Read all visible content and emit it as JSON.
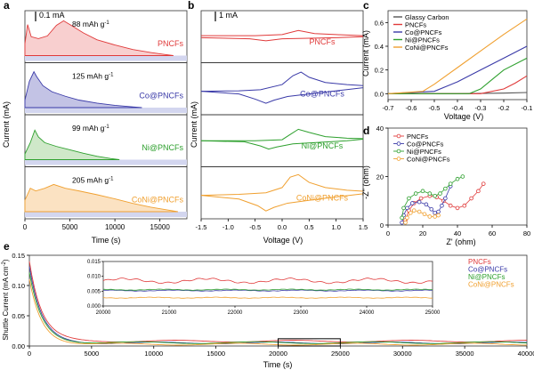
{
  "chart_data": [
    {
      "panel": "a",
      "type": "area",
      "xlabel": "Time (s)",
      "ylabel": "Current (mA)",
      "xticks": [
        0,
        5000,
        10000,
        15000
      ],
      "xlim": [
        0,
        18000
      ],
      "scalebar": "0.1 mA",
      "series": [
        {
          "name": "PNCFs",
          "capacity": "88 mAh g",
          "color": "#e03a3a",
          "fill": "#f8cfcf",
          "points": [
            [
              0,
              0.32
            ],
            [
              300,
              0.82
            ],
            [
              700,
              0.5
            ],
            [
              1500,
              0.45
            ],
            [
              2500,
              0.52
            ],
            [
              3500,
              0.8
            ],
            [
              4300,
              0.92
            ],
            [
              5000,
              0.82
            ],
            [
              6500,
              0.6
            ],
            [
              8000,
              0.42
            ],
            [
              10000,
              0.28
            ],
            [
              12000,
              0.16
            ],
            [
              14000,
              0.08
            ],
            [
              15500,
              0.03
            ],
            [
              16500,
              0
            ]
          ]
        },
        {
          "name": "Co@PNCFs",
          "capacity": "125 mAh g",
          "color": "#3a3aa8",
          "fill": "#c3c3e5",
          "points": [
            [
              0,
              0.2
            ],
            [
              500,
              0.7
            ],
            [
              1000,
              0.95
            ],
            [
              1300,
              0.82
            ],
            [
              2000,
              0.58
            ],
            [
              3000,
              0.42
            ],
            [
              4500,
              0.3
            ],
            [
              6000,
              0.2
            ],
            [
              8000,
              0.12
            ],
            [
              10000,
              0.06
            ],
            [
              12000,
              0.02
            ],
            [
              13000,
              0
            ]
          ]
        },
        {
          "name": "Ni@PNCFs",
          "capacity": "99 mAh g",
          "color": "#2ea02e",
          "fill": "#cfe8c9",
          "points": [
            [
              0,
              0.15
            ],
            [
              600,
              0.45
            ],
            [
              1100,
              0.78
            ],
            [
              1500,
              0.6
            ],
            [
              2200,
              0.45
            ],
            [
              3500,
              0.35
            ],
            [
              5000,
              0.26
            ],
            [
              6500,
              0.17
            ],
            [
              8000,
              0.09
            ],
            [
              9500,
              0.03
            ],
            [
              10500,
              0
            ]
          ]
        },
        {
          "name": "CoNi@PNCFs",
          "capacity": "205 mAh g",
          "color": "#f0a030",
          "fill": "#fbe2c2",
          "points": [
            [
              0,
              0.3
            ],
            [
              600,
              0.62
            ],
            [
              1200,
              0.55
            ],
            [
              2200,
              0.62
            ],
            [
              3200,
              0.72
            ],
            [
              4500,
              0.62
            ],
            [
              6000,
              0.55
            ],
            [
              8000,
              0.45
            ],
            [
              10000,
              0.34
            ],
            [
              12000,
              0.22
            ],
            [
              14000,
              0.12
            ],
            [
              16000,
              0.04
            ],
            [
              17000,
              0
            ]
          ]
        }
      ]
    },
    {
      "panel": "b",
      "type": "line",
      "xlabel": "Voltage (V)",
      "ylabel": "Current (mA)",
      "xticks": [
        -1.5,
        -1.0,
        -0.5,
        0.0,
        0.5,
        1.0,
        1.5
      ],
      "xlim": [
        -1.5,
        1.5
      ],
      "scalebar": "1 mA",
      "series": [
        {
          "name": "PNCFs",
          "color": "#e03a3a",
          "upper": [
            [
              -1.5,
              0.52
            ],
            [
              -0.5,
              0.52
            ],
            [
              0.0,
              0.54
            ],
            [
              0.3,
              0.62
            ],
            [
              0.6,
              0.56
            ],
            [
              1.0,
              0.54
            ],
            [
              1.5,
              0.52
            ]
          ],
          "lower": [
            [
              -1.5,
              0.48
            ],
            [
              -0.6,
              0.46
            ],
            [
              -0.3,
              0.42
            ],
            [
              0.0,
              0.46
            ],
            [
              0.5,
              0.47
            ],
            [
              1.0,
              0.48
            ],
            [
              1.5,
              0.5
            ]
          ]
        },
        {
          "name": "Co@PNCFs",
          "color": "#3a3aa8",
          "upper": [
            [
              -1.5,
              0.45
            ],
            [
              -0.8,
              0.46
            ],
            [
              -0.4,
              0.48
            ],
            [
              0.0,
              0.58
            ],
            [
              0.2,
              0.75
            ],
            [
              0.35,
              0.82
            ],
            [
              0.5,
              0.72
            ],
            [
              0.8,
              0.62
            ],
            [
              1.2,
              0.58
            ],
            [
              1.5,
              0.56
            ]
          ],
          "lower": [
            [
              -1.5,
              0.45
            ],
            [
              -0.8,
              0.4
            ],
            [
              -0.5,
              0.3
            ],
            [
              -0.3,
              0.22
            ],
            [
              -0.15,
              0.28
            ],
            [
              0.1,
              0.35
            ],
            [
              0.5,
              0.4
            ],
            [
              1.0,
              0.46
            ],
            [
              1.5,
              0.52
            ]
          ]
        },
        {
          "name": "Ni@PNCFs",
          "color": "#2ea02e",
          "upper": [
            [
              -1.5,
              0.5
            ],
            [
              -0.5,
              0.5
            ],
            [
              0.0,
              0.52
            ],
            [
              0.15,
              0.62
            ],
            [
              0.3,
              0.72
            ],
            [
              0.5,
              0.66
            ],
            [
              0.8,
              0.58
            ],
            [
              1.2,
              0.55
            ],
            [
              1.5,
              0.54
            ]
          ],
          "lower": [
            [
              -1.5,
              0.5
            ],
            [
              -0.7,
              0.48
            ],
            [
              -0.4,
              0.4
            ],
            [
              -0.25,
              0.34
            ],
            [
              -0.1,
              0.38
            ],
            [
              0.2,
              0.44
            ],
            [
              0.7,
              0.47
            ],
            [
              1.2,
              0.5
            ],
            [
              1.5,
              0.53
            ]
          ]
        },
        {
          "name": "CoNi@PNCFs",
          "color": "#f0a030",
          "upper": [
            [
              -1.5,
              0.45
            ],
            [
              -0.8,
              0.47
            ],
            [
              -0.3,
              0.5
            ],
            [
              0.0,
              0.6
            ],
            [
              0.15,
              0.8
            ],
            [
              0.3,
              0.85
            ],
            [
              0.5,
              0.7
            ],
            [
              0.8,
              0.6
            ],
            [
              1.2,
              0.55
            ],
            [
              1.5,
              0.53
            ]
          ],
          "lower": [
            [
              -1.5,
              0.45
            ],
            [
              -0.8,
              0.38
            ],
            [
              -0.45,
              0.25
            ],
            [
              -0.3,
              0.15
            ],
            [
              -0.15,
              0.22
            ],
            [
              0.1,
              0.3
            ],
            [
              0.6,
              0.37
            ],
            [
              1.0,
              0.42
            ],
            [
              1.5,
              0.48
            ]
          ]
        }
      ]
    },
    {
      "panel": "c",
      "type": "line",
      "xlabel": "Voltage (V)",
      "ylabel": "Current (mA)",
      "xlim": [
        -0.7,
        -0.1
      ],
      "ylim": [
        -0.05,
        0.7
      ],
      "xticks": [
        -0.7,
        -0.6,
        -0.5,
        -0.4,
        -0.3,
        -0.2,
        -0.1
      ],
      "yticks": [
        0.0,
        0.2,
        0.4,
        0.6
      ],
      "legend": "top-left",
      "series": [
        {
          "name": "Glassy Carbon",
          "color": "#555555",
          "points": [
            [
              -0.7,
              0.0
            ],
            [
              -0.4,
              0.0
            ],
            [
              -0.2,
              0.005
            ],
            [
              -0.1,
              0.01
            ]
          ]
        },
        {
          "name": "PNCFs",
          "color": "#e03a3a",
          "points": [
            [
              -0.7,
              0.0
            ],
            [
              -0.3,
              0.0
            ],
            [
              -0.2,
              0.04
            ],
            [
              -0.15,
              0.09
            ],
            [
              -0.1,
              0.15
            ]
          ]
        },
        {
          "name": "Co@PNCFs",
          "color": "#3a3aa8",
          "points": [
            [
              -0.7,
              0.0
            ],
            [
              -0.5,
              0.02
            ],
            [
              -0.4,
              0.1
            ],
            [
              -0.3,
              0.2
            ],
            [
              -0.2,
              0.3
            ],
            [
              -0.1,
              0.4
            ]
          ]
        },
        {
          "name": "Ni@PNCFs",
          "color": "#2ea02e",
          "points": [
            [
              -0.7,
              0.0
            ],
            [
              -0.35,
              0.0
            ],
            [
              -0.3,
              0.04
            ],
            [
              -0.25,
              0.12
            ],
            [
              -0.2,
              0.2
            ],
            [
              -0.1,
              0.3
            ]
          ]
        },
        {
          "name": "CoNi@PNCFs",
          "color": "#f0a030",
          "points": [
            [
              -0.7,
              0.0
            ],
            [
              -0.55,
              0.02
            ],
            [
              -0.5,
              0.08
            ],
            [
              -0.4,
              0.22
            ],
            [
              -0.3,
              0.36
            ],
            [
              -0.2,
              0.5
            ],
            [
              -0.1,
              0.63
            ]
          ]
        }
      ]
    },
    {
      "panel": "d",
      "type": "scatter",
      "xlabel": "Z' (ohm)",
      "ylabel": "-Z\" (ohm)",
      "xlim": [
        0,
        80
      ],
      "ylim": [
        0,
        40
      ],
      "xticks": [
        0,
        20,
        40,
        60,
        80
      ],
      "yticks": [
        0,
        20,
        40
      ],
      "legend": "top-left",
      "series": [
        {
          "name": "PNCFs",
          "color": "#e03a3a",
          "points": [
            [
              10,
              2
            ],
            [
              12,
              6
            ],
            [
              15,
              9
            ],
            [
              19,
              11
            ],
            [
              24,
              12
            ],
            [
              28,
              11.5
            ],
            [
              32,
              10
            ],
            [
              36,
              8
            ],
            [
              40,
              7
            ],
            [
              44,
              8
            ],
            [
              48,
              11
            ],
            [
              52,
              14
            ],
            [
              55,
              17
            ]
          ]
        },
        {
          "name": "Co@PNCFs",
          "color": "#3a3aa8",
          "points": [
            [
              8,
              1
            ],
            [
              9,
              4
            ],
            [
              11,
              7
            ],
            [
              14,
              9
            ],
            [
              18,
              9.5
            ],
            [
              22,
              8.5
            ],
            [
              25,
              6.5
            ],
            [
              27,
              5
            ],
            [
              29,
              5.5
            ],
            [
              31,
              8
            ],
            [
              33,
              11
            ],
            [
              36,
              16
            ]
          ]
        },
        {
          "name": "Ni@PNCFs",
          "color": "#2ea02e",
          "points": [
            [
              8,
              3
            ],
            [
              9,
              7
            ],
            [
              12,
              11
            ],
            [
              16,
              13
            ],
            [
              20,
              14
            ],
            [
              24,
              13
            ],
            [
              27,
              12
            ],
            [
              30,
              13
            ],
            [
              33,
              15
            ],
            [
              36,
              17
            ],
            [
              40,
              19
            ],
            [
              43,
              20
            ]
          ]
        },
        {
          "name": "CoNi@PNCFs",
          "color": "#f0a030",
          "points": [
            [
              10,
              1
            ],
            [
              11,
              3
            ],
            [
              13,
              5
            ],
            [
              15,
              6
            ],
            [
              18,
              5.5
            ],
            [
              21,
              4.5
            ],
            [
              24,
              3.5
            ],
            [
              27,
              3.5
            ],
            [
              29,
              4
            ]
          ]
        }
      ]
    },
    {
      "panel": "e",
      "type": "line",
      "xlabel": "Time (s)",
      "ylabel": "Shuttle Current (mA cm",
      "xlim": [
        0,
        40000
      ],
      "ylim": [
        0,
        0.15
      ],
      "xticks": [
        0,
        5000,
        10000,
        15000,
        20000,
        25000,
        30000,
        35000,
        40000
      ],
      "yticks": [
        0.0,
        0.05,
        0.1,
        0.15
      ],
      "legend": "top-right",
      "series": [
        {
          "name": "PNCFs",
          "color": "#e03a3a",
          "start": 0.14,
          "steady": 0.008
        },
        {
          "name": "Co@PNCFs",
          "color": "#3a3aa8",
          "start": 0.13,
          "steady": 0.005
        },
        {
          "name": "Ni@PNCFs",
          "color": "#2ea02e",
          "start": 0.12,
          "steady": 0.0055
        },
        {
          "name": "CoNi@PNCFs",
          "color": "#f0a030",
          "start": 0.11,
          "steady": 0.003
        }
      ],
      "inset": {
        "xlim": [
          20000,
          25000
        ],
        "ylim": [
          0,
          0.015
        ],
        "xticks": [
          20000,
          21000,
          22000,
          23000,
          24000,
          25000
        ],
        "yticks": [
          0.0,
          0.005,
          0.01,
          0.015
        ],
        "steady": [
          0.0085,
          0.0052,
          0.0055,
          0.0028
        ]
      }
    }
  ],
  "labels": {
    "a": "a",
    "b": "b",
    "c": "c",
    "d": "d",
    "e": "e",
    "scale_a": "0.1 mA",
    "scale_b": "1 mA",
    "cap_unit": "-1",
    "unit_sup_e": "-2",
    "unit_close_e": ")"
  }
}
